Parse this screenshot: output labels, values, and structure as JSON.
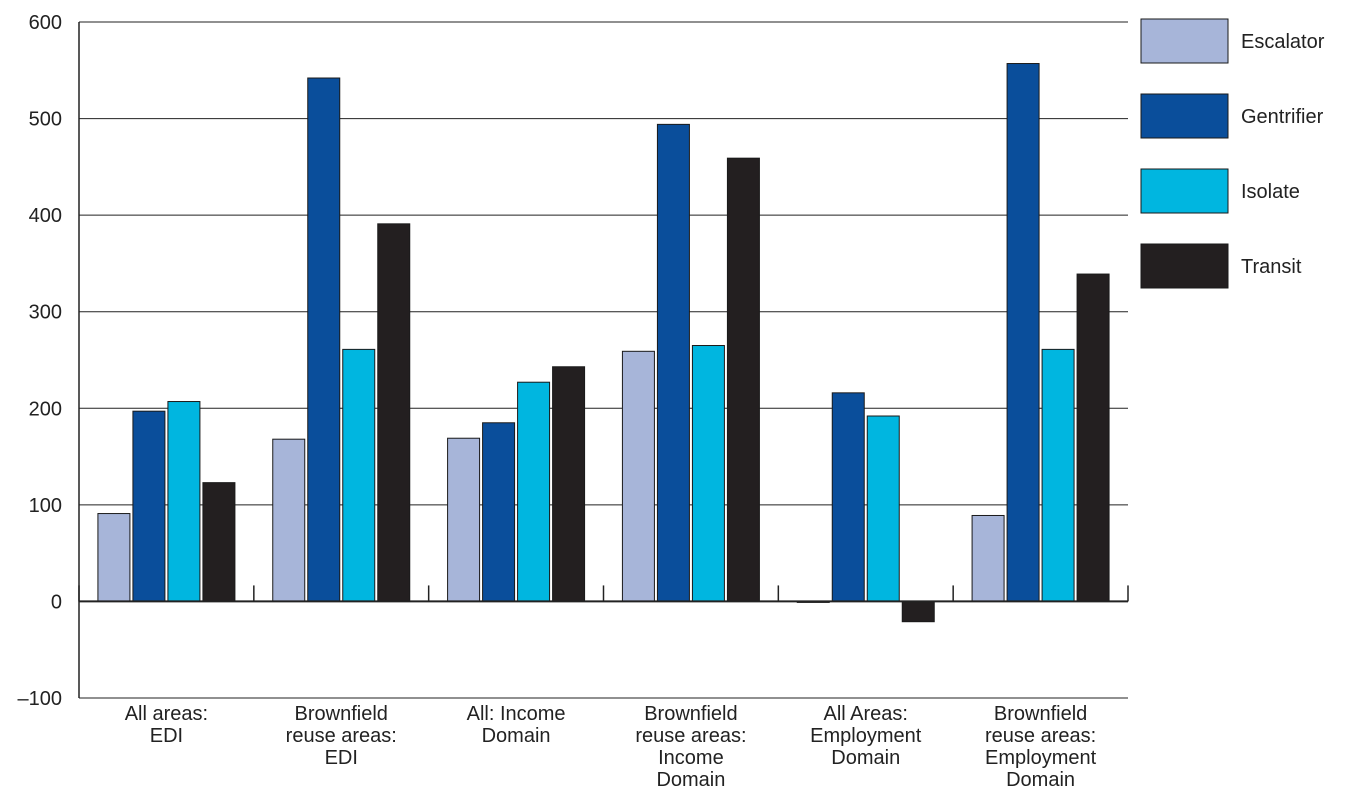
{
  "chart_data": {
    "type": "bar",
    "title": "",
    "xlabel": "",
    "ylabel": "",
    "ylim": [
      -100,
      600
    ],
    "yticks": [
      -100,
      0,
      100,
      200,
      300,
      400,
      500,
      600
    ],
    "ytick_labels": [
      "–100",
      "0",
      "100",
      "200",
      "300",
      "400",
      "500",
      "600"
    ],
    "grid": true,
    "legend_position": "top-right",
    "categories": [
      [
        "All areas:",
        "EDI"
      ],
      [
        "Brownfield",
        "reuse areas:",
        "EDI"
      ],
      [
        "All: Income",
        "Domain"
      ],
      [
        "Brownfield",
        "reuse areas:",
        "Income",
        "Domain"
      ],
      [
        "All Areas:",
        "Employment",
        "Domain"
      ],
      [
        "Brownfield",
        "reuse areas:",
        "Employment",
        "Domain"
      ]
    ],
    "series": [
      {
        "name": "Escalator",
        "color": "#a7b5d9",
        "values": [
          91,
          168,
          169,
          259,
          -1,
          89
        ]
      },
      {
        "name": "Gentrifier",
        "color": "#0a4e9b",
        "values": [
          197,
          542,
          185,
          494,
          216,
          557
        ]
      },
      {
        "name": "Isolate",
        "color": "#00b6e0",
        "values": [
          207,
          261,
          227,
          265,
          192,
          261
        ]
      },
      {
        "name": "Transit",
        "color": "#231f20",
        "values": [
          123,
          391,
          243,
          459,
          -21,
          339
        ]
      }
    ]
  }
}
